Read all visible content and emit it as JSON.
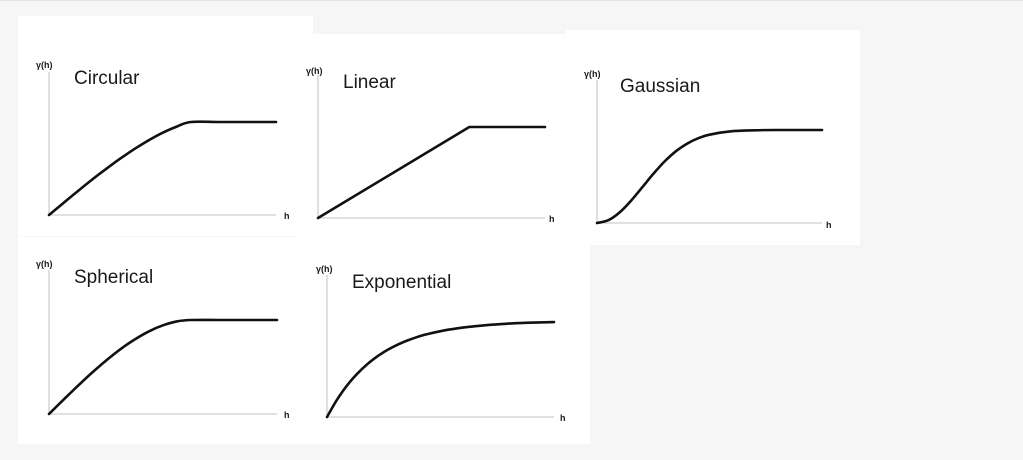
{
  "chart_data": [
    {
      "type": "line",
      "title": "Circular",
      "xlabel": "h",
      "ylabel": "γ(h)",
      "model": "circular",
      "x": [
        0,
        0.1,
        0.2,
        0.3,
        0.4,
        0.5,
        0.6,
        0.7,
        0.8,
        0.9,
        1.0,
        1.2,
        1.4,
        1.6
      ],
      "y": [
        0,
        0.127,
        0.253,
        0.376,
        0.493,
        0.604,
        0.707,
        0.801,
        0.884,
        0.951,
        1.0,
        1.0,
        1.0,
        1.0
      ],
      "xlim": [
        0,
        1.6
      ],
      "ylim": [
        0,
        1.2
      ],
      "grid": false
    },
    {
      "type": "line",
      "title": "Linear",
      "xlabel": "h",
      "ylabel": "γ(h)",
      "model": "linear",
      "x": [
        0,
        1.0,
        1.5
      ],
      "y": [
        0,
        1.0,
        1.0
      ],
      "xlim": [
        0,
        1.5
      ],
      "ylim": [
        0,
        1.2
      ],
      "grid": false
    },
    {
      "type": "line",
      "title": "Gaussian",
      "xlabel": "h",
      "ylabel": "γ(h)",
      "model": "gaussian",
      "x": [
        0,
        0.1,
        0.2,
        0.3,
        0.4,
        0.5,
        0.6,
        0.7,
        0.8,
        0.9,
        1.0,
        1.2,
        1.4,
        1.6,
        1.8,
        2.0
      ],
      "y": [
        0,
        0.03,
        0.113,
        0.237,
        0.381,
        0.528,
        0.661,
        0.771,
        0.853,
        0.912,
        0.95,
        0.987,
        0.997,
        1.0,
        1.0,
        1.0
      ],
      "xlim": [
        0,
        2.0
      ],
      "ylim": [
        0,
        1.2
      ],
      "grid": false
    },
    {
      "type": "line",
      "title": "Spherical",
      "xlabel": "h",
      "ylabel": "γ(h)",
      "model": "spherical",
      "x": [
        0,
        0.1,
        0.2,
        0.3,
        0.4,
        0.5,
        0.6,
        0.7,
        0.8,
        0.9,
        1.0,
        1.2,
        1.4,
        1.6
      ],
      "y": [
        0,
        0.15,
        0.296,
        0.437,
        0.568,
        0.688,
        0.792,
        0.879,
        0.944,
        0.986,
        1.0,
        1.0,
        1.0,
        1.0
      ],
      "xlim": [
        0,
        1.6
      ],
      "ylim": [
        0,
        1.2
      ],
      "grid": false
    },
    {
      "type": "line",
      "title": "Exponential",
      "xlabel": "h",
      "ylabel": "γ(h)",
      "model": "exponential",
      "x": [
        0,
        0.2,
        0.4,
        0.6,
        0.8,
        1.0,
        1.2,
        1.4,
        1.6,
        1.8,
        2.0,
        2.4,
        2.8,
        3.2,
        3.6,
        4.0,
        4.5
      ],
      "y": [
        0,
        0.181,
        0.33,
        0.451,
        0.551,
        0.632,
        0.699,
        0.753,
        0.798,
        0.835,
        0.865,
        0.909,
        0.939,
        0.959,
        0.973,
        0.982,
        0.989
      ],
      "xlim": [
        0,
        4.5
      ],
      "ylim": [
        0,
        1.2
      ],
      "grid": false
    }
  ]
}
